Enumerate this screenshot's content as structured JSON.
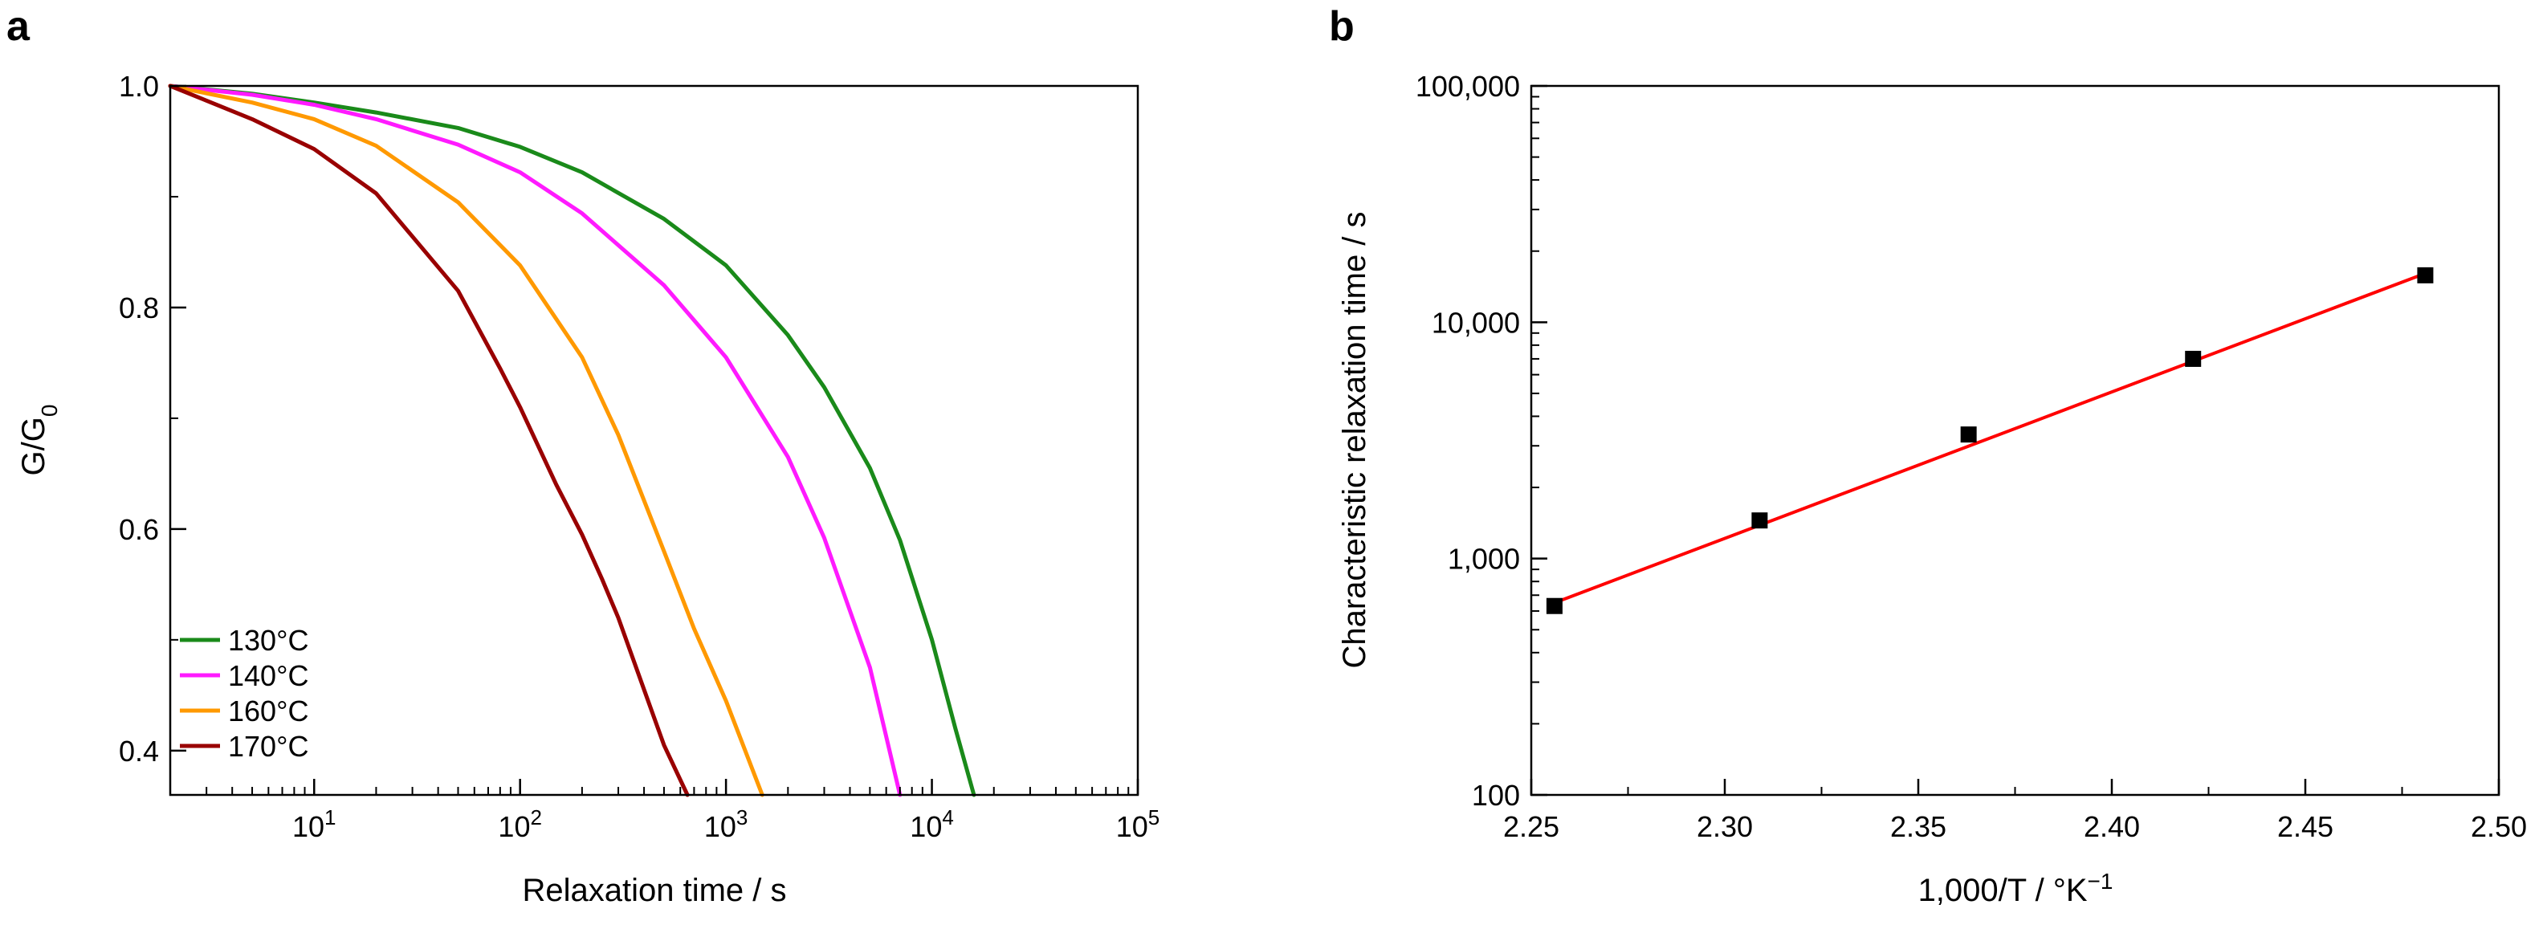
{
  "chart_data": [
    {
      "panel_label": "a",
      "type": "line",
      "xlabel": "Relaxation time / s",
      "ylabel_main": "G/G",
      "ylabel_sub": "0",
      "xscale": "log",
      "xlim": [
        2,
        100000
      ],
      "ylim": [
        0.36,
        1.0
      ],
      "x_ticks": [
        {
          "value": 10,
          "base": "10",
          "exp": "1"
        },
        {
          "value": 100,
          "base": "10",
          "exp": "2"
        },
        {
          "value": 1000,
          "base": "10",
          "exp": "3"
        },
        {
          "value": 10000,
          "base": "10",
          "exp": "4"
        },
        {
          "value": 100000,
          "base": "10",
          "exp": "5"
        }
      ],
      "y_ticks": [
        {
          "value": 0.4,
          "label": "0.4"
        },
        {
          "value": 0.6,
          "label": "0.6"
        },
        {
          "value": 0.8,
          "label": "0.8"
        },
        {
          "value": 1.0,
          "label": "1.0"
        }
      ],
      "legend_position": "bottom-left",
      "series": [
        {
          "name": "130°C",
          "color": "#1a8a1a",
          "x": [
            2,
            5,
            10,
            20,
            50,
            100,
            200,
            500,
            1000,
            2000,
            3000,
            5000,
            7000,
            10000,
            13000,
            16000
          ],
          "y": [
            1.0,
            0.993,
            0.985,
            0.976,
            0.962,
            0.945,
            0.922,
            0.88,
            0.838,
            0.775,
            0.728,
            0.655,
            0.59,
            0.5,
            0.42,
            0.36
          ]
        },
        {
          "name": "140°C",
          "color": "#ff1aff",
          "x": [
            2,
            5,
            10,
            20,
            50,
            100,
            200,
            500,
            1000,
            2000,
            3000,
            5000,
            7000
          ],
          "y": [
            1.0,
            0.992,
            0.983,
            0.97,
            0.947,
            0.922,
            0.885,
            0.82,
            0.755,
            0.665,
            0.592,
            0.475,
            0.36
          ]
        },
        {
          "name": "160°C",
          "color": "#ff9900",
          "x": [
            2,
            5,
            10,
            20,
            50,
            100,
            200,
            300,
            500,
            700,
            1000,
            1500
          ],
          "y": [
            1.0,
            0.985,
            0.97,
            0.946,
            0.895,
            0.838,
            0.755,
            0.685,
            0.58,
            0.51,
            0.445,
            0.36
          ]
        },
        {
          "name": "170°C",
          "color": "#990000",
          "x": [
            2,
            5,
            10,
            20,
            50,
            80,
            100,
            150,
            200,
            250,
            300,
            400,
            500,
            650
          ],
          "y": [
            1.0,
            0.97,
            0.943,
            0.903,
            0.815,
            0.745,
            0.71,
            0.64,
            0.595,
            0.555,
            0.52,
            0.455,
            0.405,
            0.36
          ]
        }
      ]
    },
    {
      "panel_label": "b",
      "type": "scatter",
      "xlabel": "1,000/T / °K",
      "xlabel_sup": "−1",
      "ylabel": "Characteristic relaxation time / s",
      "yscale": "log",
      "xlim": [
        2.25,
        2.5
      ],
      "ylim": [
        100,
        100000
      ],
      "x_ticks": [
        {
          "value": 2.25,
          "label": "2.25"
        },
        {
          "value": 2.3,
          "label": "2.30"
        },
        {
          "value": 2.35,
          "label": "2.35"
        },
        {
          "value": 2.4,
          "label": "2.40"
        },
        {
          "value": 2.45,
          "label": "2.45"
        },
        {
          "value": 2.5,
          "label": "2.50"
        }
      ],
      "y_ticks": [
        {
          "value": 100,
          "label": "100"
        },
        {
          "value": 1000,
          "label": "1,000"
        },
        {
          "value": 10000,
          "label": "10,000"
        },
        {
          "value": 100000,
          "label": "100,000"
        }
      ],
      "points": {
        "x": [
          2.256,
          2.309,
          2.363,
          2.421,
          2.481
        ],
        "y": [
          630,
          1450,
          3350,
          7000,
          15800
        ]
      },
      "fit_line": {
        "color": "#ff0000",
        "x": [
          2.256,
          2.481
        ],
        "y": [
          650,
          16100
        ]
      },
      "marker_color": "#000000"
    }
  ]
}
